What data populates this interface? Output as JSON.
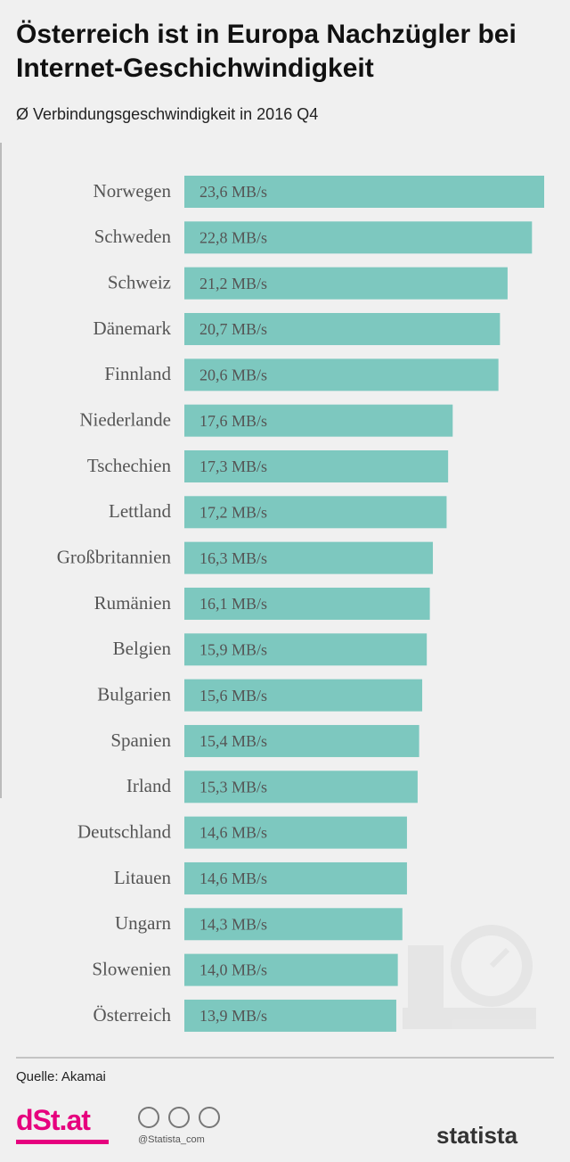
{
  "chart_data": {
    "type": "bar",
    "title": "Österreich ist in Europa Nachzügler bei Internet-Geschichwindigkeit",
    "subtitle": "Ø Verbindungsgeschwindigkeit in 2016 Q4",
    "categories": [
      "Norwegen",
      "Schweden",
      "Schweiz",
      "Dänemark",
      "Finnland",
      "Niederlande",
      "Tschechien",
      "Lettland",
      "Großbritannien",
      "Rumänien",
      "Belgien",
      "Bulgarien",
      "Spanien",
      "Irland",
      "Deutschland",
      "Litauen",
      "Ungarn",
      "Slowenien",
      "Österreich"
    ],
    "values": [
      23.6,
      22.8,
      21.2,
      20.7,
      20.6,
      17.6,
      17.3,
      17.2,
      16.3,
      16.1,
      15.9,
      15.6,
      15.4,
      15.3,
      14.6,
      14.6,
      14.3,
      14.0,
      13.9
    ],
    "value_labels": [
      "23,6 MB/s",
      "22,8 MB/s",
      "21,2 MB/s",
      "20,7 MB/s",
      "20,6 MB/s",
      "17,6 MB/s",
      "17,3 MB/s",
      "17,2 MB/s",
      "16,3 MB/s",
      "16,1 MB/s",
      "15,9 MB/s",
      "15,6 MB/s",
      "15,4 MB/s",
      "15,3 MB/s",
      "14,6 MB/s",
      "14,6 MB/s",
      "14,3 MB/s",
      "14,0 MB/s",
      "13,9 MB/s"
    ],
    "color": "#7dc8bf",
    "source": "Quelle: Akamai"
  },
  "footer": {
    "logo": "dSt.at",
    "handle": "@Statista_com",
    "brand": "statista"
  }
}
